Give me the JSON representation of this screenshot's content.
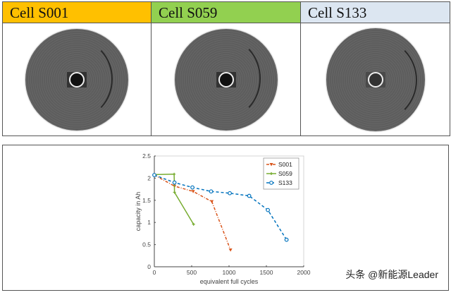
{
  "cells": [
    {
      "label": "Cell S001",
      "color": "#FFC000"
    },
    {
      "label": "Cell S059",
      "color": "#92D050"
    },
    {
      "label": "Cell S133",
      "color": "#DCE6F1"
    }
  ],
  "chart_data": {
    "type": "line",
    "xlabel": "equivalent full cycles",
    "ylabel": "capacity in Ah",
    "xlim": [
      0,
      2000
    ],
    "ylim": [
      0,
      2.5
    ],
    "xticks": [
      0,
      500,
      1000,
      1500,
      2000
    ],
    "yticks": [
      0,
      0.5,
      1,
      1.5,
      2,
      2.5
    ],
    "grid": false,
    "legend": "top-right",
    "series": [
      {
        "name": "S001",
        "color": "#D95319",
        "style": "dash-dot",
        "marker": "triangle-down",
        "x": [
          0,
          270,
          520,
          770,
          1020
        ],
        "y": [
          2.07,
          1.82,
          1.7,
          1.47,
          0.38
        ]
      },
      {
        "name": "S059",
        "color": "#77AC30",
        "style": "solid",
        "marker": "asterisk",
        "x": [
          0,
          265,
          270,
          525
        ],
        "y": [
          2.08,
          2.09,
          1.68,
          0.96
        ]
      },
      {
        "name": "S133",
        "color": "#0072BD",
        "style": "dashed",
        "marker": "circle",
        "x": [
          0,
          270,
          510,
          760,
          1010,
          1270,
          1520,
          1770
        ],
        "y": [
          2.07,
          1.9,
          1.79,
          1.7,
          1.66,
          1.6,
          1.28,
          0.61
        ]
      }
    ]
  },
  "watermark": "头条 @新能源Leader"
}
